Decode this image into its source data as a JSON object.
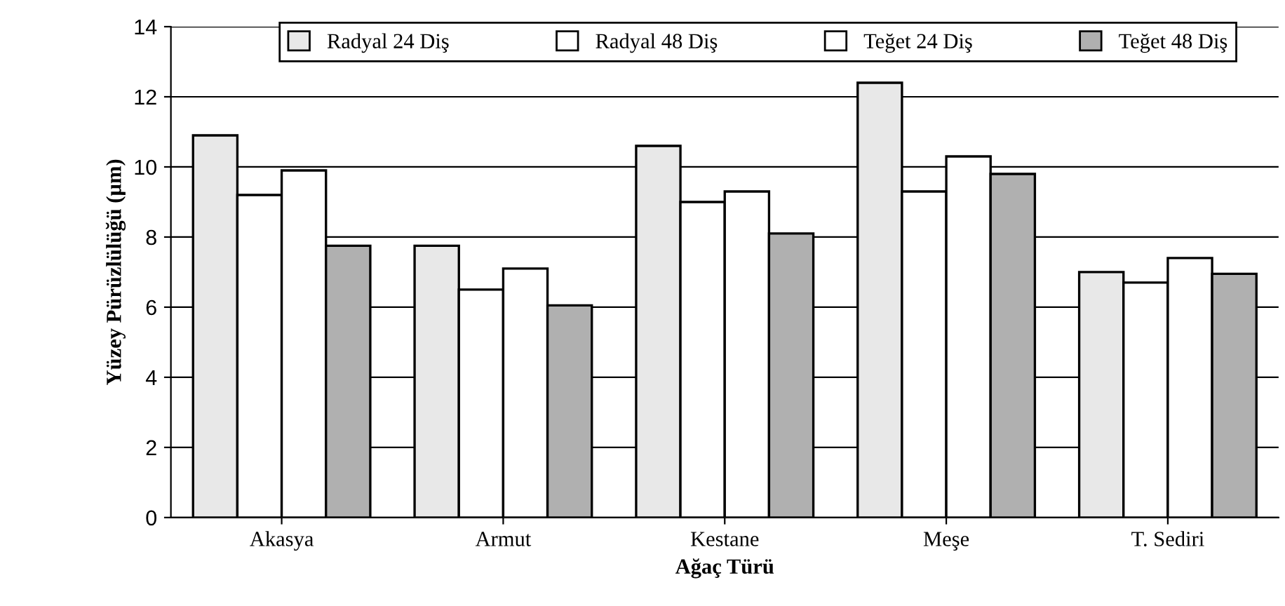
{
  "chart_data": {
    "type": "bar",
    "xlabel": "Ağaç Türü",
    "ylabel": "Yüzey Pürüzlülüğü (µm)",
    "categories": [
      "Akasya",
      "Armut",
      "Kestane",
      "Meşe",
      "T. Sediri"
    ],
    "series": [
      {
        "name": "Radyal 24 Diş",
        "color": "#e8e8e8",
        "values": [
          10.9,
          7.75,
          10.6,
          12.4,
          7.0
        ]
      },
      {
        "name": "Radyal 48 Diş",
        "color": "#ffffff",
        "values": [
          9.2,
          6.5,
          9.0,
          9.3,
          6.7
        ]
      },
      {
        "name": "Teğet 24 Diş",
        "color": "#ffffff",
        "values": [
          9.9,
          7.1,
          9.3,
          10.3,
          7.4
        ]
      },
      {
        "name": "Teğet 48 Diş",
        "color": "#b0b0b0",
        "values": [
          7.75,
          6.05,
          8.1,
          9.8,
          6.95
        ]
      }
    ],
    "ylim": [
      0,
      14
    ],
    "yticks": [
      0,
      2,
      4,
      6,
      8,
      10,
      12,
      14
    ],
    "grid": "y",
    "legend": "top"
  }
}
